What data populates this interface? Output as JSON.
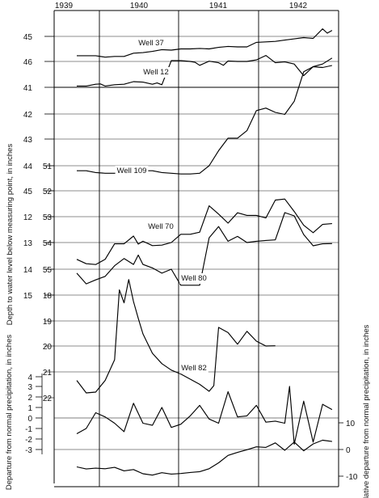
{
  "chart_data": {
    "type": "line",
    "years": [
      "1939",
      "1940",
      "1941",
      "1942"
    ],
    "left_ylabel": "Depth to water level below measuring point, in inches",
    "left_lower_ylabel": "Departure from normal precipitation, in inches",
    "right_ylabel": "Cumulative departure from normal precipitation, in inches",
    "scales": {
      "outer": [
        "45",
        "46",
        "41",
        "42",
        "43",
        "44",
        "45",
        "12",
        "13",
        "14",
        "15"
      ],
      "mid": [
        "51",
        "52",
        "53",
        "54",
        "55",
        "18",
        "19",
        "20",
        "21",
        "22"
      ],
      "precip": [
        "4",
        "3",
        "2",
        "1",
        "0",
        "-1",
        "-2",
        "-3"
      ],
      "cumulative": [
        "10",
        "0",
        "-10"
      ]
    },
    "series": [
      {
        "name": "Well 37",
        "x": [
          0,
          2,
          4,
          6,
          8,
          10,
          12,
          14,
          16,
          18,
          20,
          22,
          24,
          26,
          28,
          30,
          32,
          34,
          36,
          38,
          40,
          42,
          44,
          46,
          48,
          50,
          52,
          53,
          54
        ],
        "y": [
          45.77,
          45.77,
          45.77,
          45.83,
          45.8,
          45.8,
          45.67,
          45.65,
          45.6,
          45.53,
          45.55,
          45.5,
          45.5,
          45.48,
          45.5,
          45.44,
          45.4,
          45.42,
          45.42,
          45.24,
          45.22,
          45.2,
          45.15,
          45.1,
          45.05,
          45.08,
          44.7,
          44.87,
          44.76
        ]
      },
      {
        "name": "Well 12",
        "x": [
          0,
          2,
          4,
          5,
          6,
          8,
          10,
          12,
          14,
          16,
          17,
          18,
          20,
          22,
          24,
          25,
          26,
          28,
          30,
          31,
          32,
          34,
          36,
          38,
          40,
          42,
          44,
          46,
          48,
          50,
          52,
          54
        ],
        "y": [
          46.95,
          46.95,
          46.88,
          46.87,
          46.95,
          46.9,
          46.88,
          46.78,
          46.8,
          46.88,
          46.83,
          46.9,
          45.97,
          45.97,
          46.0,
          46.03,
          46.15,
          45.99,
          46.05,
          46.15,
          45.98,
          46.0,
          46.0,
          45.94,
          45.77,
          46.05,
          46.02,
          46.1,
          46.55,
          46.2,
          46.1,
          45.87
        ]
      },
      {
        "name": "Well 109",
        "x": [
          0,
          2,
          4,
          6,
          8,
          10,
          12,
          14,
          16,
          18,
          20,
          22,
          24,
          26,
          28,
          30,
          32,
          34,
          36,
          38,
          40,
          42,
          44,
          46,
          48,
          50,
          52,
          54
        ],
        "y": [
          51.2,
          51.2,
          51.27,
          51.3,
          51.3,
          51.28,
          51.25,
          51.2,
          51.2,
          51.27,
          51.3,
          51.33,
          51.33,
          51.3,
          51.0,
          50.4,
          49.9,
          49.9,
          49.6,
          48.8,
          48.7,
          48.87,
          48.95,
          48.43,
          47.25,
          47.05,
          47.08,
          47.0
        ]
      },
      {
        "name": "Well 70",
        "x": [
          0,
          2,
          4,
          6,
          8,
          10,
          12,
          13,
          14,
          16,
          18,
          20,
          22,
          24,
          26,
          28,
          30,
          32,
          34,
          36,
          38,
          40,
          42,
          44,
          46,
          48,
          50,
          52,
          54
        ],
        "y": [
          54.65,
          54.82,
          54.85,
          54.65,
          54.05,
          54.05,
          53.75,
          54.06,
          53.95,
          54.12,
          54.1,
          54.0,
          53.68,
          53.68,
          53.6,
          52.58,
          52.9,
          53.25,
          52.85,
          52.95,
          52.95,
          53.05,
          52.36,
          52.32,
          52.8,
          53.33,
          53.62,
          53.3,
          53.27
        ]
      },
      {
        "name": "Well 80",
        "x": [
          0,
          2,
          4,
          6,
          8,
          10,
          12,
          13,
          14,
          16,
          18,
          20,
          22,
          24,
          26,
          28,
          30,
          32,
          34,
          36,
          38,
          40,
          42,
          44,
          46,
          48,
          50,
          52,
          54
        ],
        "y": [
          55.15,
          55.55,
          55.4,
          55.27,
          54.87,
          54.6,
          54.82,
          54.47,
          54.82,
          54.95,
          55.15,
          55.0,
          55.6,
          55.6,
          55.6,
          53.82,
          53.4,
          53.95,
          53.77,
          54.0,
          53.95,
          53.92,
          53.9,
          52.88,
          53.0,
          53.7,
          54.12,
          54.05,
          54.04
        ]
      },
      {
        "name": "Well 82",
        "x": [
          0,
          2,
          4,
          6,
          8,
          9,
          10,
          11,
          12,
          13,
          14,
          16,
          18,
          20,
          22,
          24,
          26,
          28,
          29,
          30,
          32,
          34,
          36,
          38,
          40,
          42
        ],
        "y": [
          21.3,
          21.78,
          21.75,
          21.3,
          20.5,
          17.8,
          18.3,
          17.4,
          18.25,
          18.9,
          19.5,
          20.25,
          20.65,
          20.9,
          21.05,
          21.25,
          21.45,
          21.72,
          21.5,
          19.25,
          19.45,
          19.9,
          19.4,
          19.78,
          19.97,
          19.96
        ]
      },
      {
        "name": "Departure from normal precipitation",
        "x": [
          0,
          2,
          4,
          6,
          8,
          10,
          12,
          14,
          16,
          18,
          20,
          22,
          24,
          26,
          28,
          30,
          32,
          34,
          36,
          38,
          40,
          42,
          44,
          45,
          46,
          48,
          50,
          52,
          54
        ],
        "y": [
          -1.5,
          -1.0,
          0.5,
          0.1,
          -0.5,
          -1.3,
          1.4,
          -0.5,
          -0.7,
          1.0,
          -0.9,
          -0.6,
          0.2,
          1.2,
          -0.1,
          -0.5,
          2.5,
          0.1,
          0.2,
          1.2,
          -0.4,
          -0.3,
          -0.5,
          3.0,
          -2.5,
          1.6,
          -2.3,
          1.3,
          0.8
        ]
      },
      {
        "name": "Cumulative departure from normal precipitation",
        "x": [
          0,
          2,
          4,
          6,
          8,
          10,
          12,
          14,
          16,
          18,
          20,
          22,
          24,
          26,
          28,
          30,
          32,
          34,
          36,
          38,
          40,
          42,
          44,
          46,
          48,
          50,
          52,
          54
        ],
        "y": [
          -6.5,
          -7.3,
          -7.0,
          -7.2,
          -6.7,
          -8.0,
          -7.5,
          -9.1,
          -9.6,
          -8.7,
          -9.2,
          -9.0,
          -8.6,
          -8.3,
          -7.2,
          -5.0,
          -2.2,
          -1.1,
          -0.1,
          1.0,
          0.8,
          2.5,
          -0.3,
          2.8,
          -0.5,
          2.1,
          3.5,
          3.0
        ]
      }
    ],
    "annotations": [
      "Well 37",
      "Well 12",
      "Well 109",
      "Well 70",
      "Well 80",
      "Well 82"
    ]
  }
}
